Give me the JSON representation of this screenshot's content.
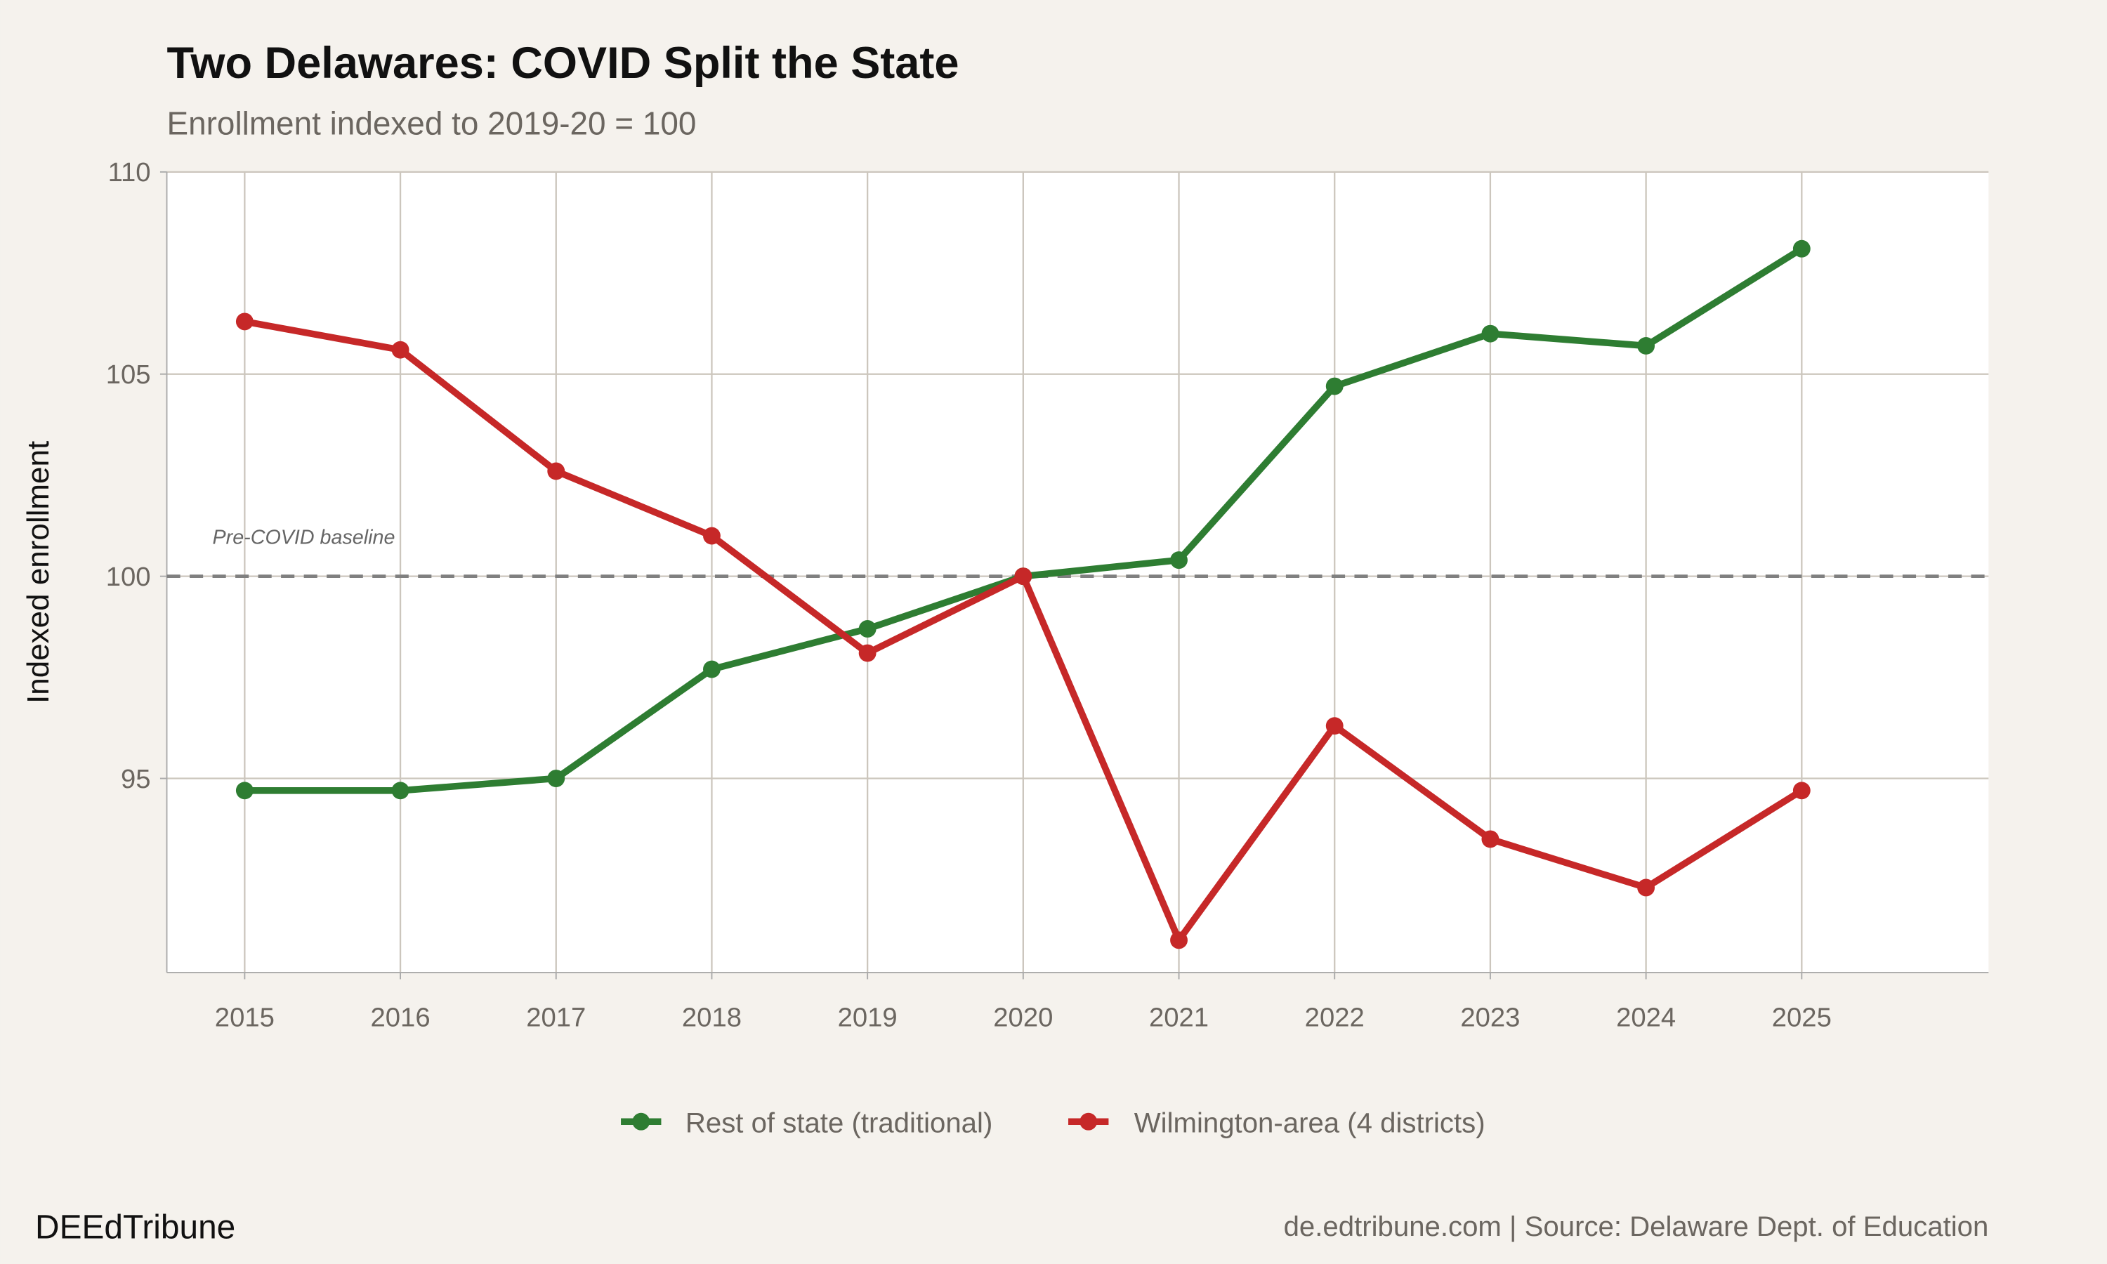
{
  "chart_data": {
    "type": "line",
    "title": "Two Delawares: COVID Split the State",
    "subtitle": "Enrollment indexed to 2019-20 = 100",
    "xlabel": "",
    "ylabel": "Indexed enrollment",
    "x": [
      2015,
      2016,
      2017,
      2018,
      2019,
      2020,
      2021,
      2022,
      2023,
      2024,
      2025
    ],
    "x_ticks": [
      "2015",
      "2016",
      "2017",
      "2018",
      "2019",
      "2020",
      "2021",
      "2022",
      "2023",
      "2024",
      "2025"
    ],
    "y_ticks": [
      "95",
      "100",
      "105",
      "110"
    ],
    "xlim": [
      2014.5,
      2026.2
    ],
    "ylim": [
      90.2,
      110
    ],
    "grid": true,
    "legend_position": "bottom",
    "series": [
      {
        "name": "Rest of state (traditional)",
        "color": "#2e7d32",
        "values": [
          94.7,
          94.7,
          95.0,
          97.7,
          98.7,
          100.0,
          100.4,
          104.7,
          106.0,
          105.7,
          108.1
        ]
      },
      {
        "name": "Wilmington-area (4 districts)",
        "color": "#c62828",
        "values": [
          106.3,
          105.6,
          102.6,
          101.0,
          98.1,
          100.0,
          91.0,
          96.3,
          93.5,
          92.3,
          94.7
        ]
      }
    ],
    "reference_line": {
      "y": 100,
      "label": "Pre-COVID baseline",
      "style": "dashed"
    },
    "caption_left": "DEEdTribune",
    "caption_right": "de.edtribune.com | Source: Delaware Dept. of Education"
  }
}
